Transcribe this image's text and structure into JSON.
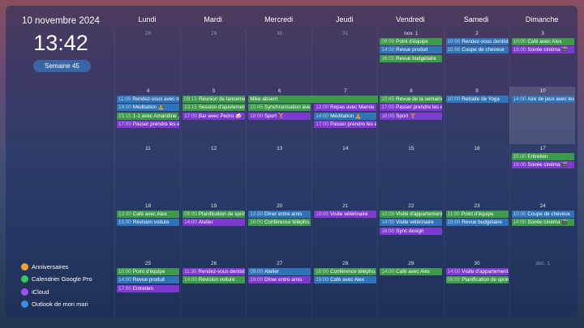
{
  "sidebar": {
    "date": "10 novembre 2024",
    "time": "13:42",
    "week": "Semaine 45"
  },
  "calendars": [
    {
      "name": "Anniversaires",
      "color": "#f0a030"
    },
    {
      "name": "Calendrier Google Pro",
      "color": "#34c759"
    },
    {
      "name": "iCloud",
      "color": "#a050f0"
    },
    {
      "name": "Outlook de mon mari",
      "color": "#3a8ee0"
    }
  ],
  "weekdays": [
    "Lundi",
    "Mardi",
    "Mercredi",
    "Jeudi",
    "Vendredi",
    "Samedi",
    "Dimanche"
  ],
  "weeks": [
    {
      "days": [
        {
          "label": "28",
          "muted": true,
          "events": []
        },
        {
          "label": "29",
          "muted": true,
          "events": []
        },
        {
          "label": "30",
          "muted": true,
          "events": []
        },
        {
          "label": "31",
          "muted": true,
          "events": []
        },
        {
          "label": "nov. 1",
          "events": [
            {
              "time": "09:00",
              "title": "Point d'équipe",
              "color": "#3d9a4a"
            },
            {
              "time": "14:00",
              "title": "Revue produit",
              "color": "#2f74b8"
            },
            {
              "time": "16:00",
              "title": "Revue budgétaire",
              "color": "#3d9a4a"
            }
          ]
        },
        {
          "label": "2",
          "events": [
            {
              "time": "10:00",
              "title": "Rendez-vous dentiste",
              "color": "#2f74b8"
            },
            {
              "time": "15:00",
              "title": "Coupe de cheveux",
              "color": "#2f74b8"
            }
          ]
        },
        {
          "label": "3",
          "events": [
            {
              "time": "10:00",
              "title": "Café avec Alex",
              "color": "#3d9a4a"
            },
            {
              "time": "19:00",
              "title": "Soirée cinéma 🎬",
              "color": "#7e3ad0"
            }
          ]
        }
      ]
    },
    {
      "days": [
        {
          "label": "4",
          "events": [
            {
              "time": "11:00",
              "title": "Rendez-vous avec n...",
              "color": "#2f74b8"
            },
            {
              "time": "14:00",
              "title": "Méditation 🧘",
              "color": "#2f74b8"
            },
            {
              "time": "15:15",
              "title": "1-1 avec Amandine 👩‍💻",
              "color": "#3d9a4a"
            },
            {
              "time": "17:00",
              "title": "Passer prendre les e...",
              "color": "#7e3ad0"
            }
          ]
        },
        {
          "label": "5",
          "events": [
            {
              "time": "09:15",
              "title": "Réunion de lancement",
              "color": "#3d9a4a"
            },
            {
              "time": "13:15",
              "title": "Session d'ajustement",
              "color": "#3d9a4a"
            },
            {
              "time": "17:00",
              "title": "Bar avec Pedro 🍻",
              "color": "#7e3ad0"
            }
          ]
        },
        {
          "label": "6",
          "events": [
            {
              "title": "Mike absent",
              "color": "#3d9a4a",
              "all_day": true,
              "span": 2
            },
            {
              "time": "10:45",
              "title": "Synchronisation ave...",
              "color": "#3d9a4a"
            },
            {
              "time": "18:00",
              "title": "Sport 🏋",
              "color": "#7e3ad0"
            }
          ]
        },
        {
          "label": "7",
          "events": [
            {
              "time": "12:00",
              "title": "Repas avec Marnie",
              "color": "#7e3ad0"
            },
            {
              "time": "14:00",
              "title": "Méditation 🧘",
              "color": "#2f74b8"
            },
            {
              "time": "17:00",
              "title": "Passer prendre les e...",
              "color": "#7e3ad0"
            }
          ]
        },
        {
          "label": "8",
          "events": [
            {
              "time": "10:45",
              "title": "Revue de la semaine",
              "color": "#3d9a4a"
            },
            {
              "time": "17:00",
              "title": "Passer prendre les e...",
              "color": "#7e3ad0"
            },
            {
              "time": "18:00",
              "title": "Sport 🏋",
              "color": "#7e3ad0"
            }
          ]
        },
        {
          "label": "9",
          "events": [
            {
              "time": "10:00",
              "title": "Retraite de Yoga",
              "color": "#2f74b8"
            }
          ]
        },
        {
          "label": "10",
          "highlighted": true,
          "events": [
            {
              "time": "14:00",
              "title": "Aire de jeux avec les...",
              "color": "#2f74b8"
            }
          ]
        }
      ]
    },
    {
      "days": [
        {
          "label": "11",
          "events": []
        },
        {
          "label": "12",
          "events": []
        },
        {
          "label": "13",
          "events": []
        },
        {
          "label": "14",
          "events": []
        },
        {
          "label": "15",
          "events": []
        },
        {
          "label": "16",
          "events": []
        },
        {
          "label": "17",
          "events": [
            {
              "time": "15:00",
              "title": "Entretien",
              "color": "#3d9a4a"
            },
            {
              "time": "19:00",
              "title": "Soirée cinéma 🎬",
              "color": "#7e3ad0"
            }
          ]
        }
      ]
    },
    {
      "days": [
        {
          "label": "18",
          "events": [
            {
              "time": "13:00",
              "title": "Café avec Alex",
              "color": "#3d9a4a"
            },
            {
              "time": "15:00",
              "title": "Révision voiture",
              "color": "#2f74b8"
            }
          ]
        },
        {
          "label": "19",
          "events": [
            {
              "time": "09:00",
              "title": "Planification de sprint",
              "color": "#3d9a4a"
            },
            {
              "time": "14:00",
              "title": "Atelier",
              "color": "#7e3ad0"
            }
          ]
        },
        {
          "label": "20",
          "events": [
            {
              "time": "12:00",
              "title": "Dîner entre amis",
              "color": "#2f74b8"
            },
            {
              "time": "16:00",
              "title": "Conférence télépho...",
              "color": "#3d9a4a"
            }
          ]
        },
        {
          "label": "21",
          "events": [
            {
              "time": "19:00",
              "title": "Visite vétérinaire",
              "color": "#7e3ad0"
            }
          ]
        },
        {
          "label": "22",
          "events": [
            {
              "time": "10:00",
              "title": "Visite d'appartement",
              "color": "#3d9a4a"
            },
            {
              "time": "14:00",
              "title": "Visite vétérinaire",
              "color": "#2f74b8"
            },
            {
              "time": "16:00",
              "title": "Sync design",
              "color": "#7e3ad0"
            }
          ]
        },
        {
          "label": "23",
          "events": [
            {
              "time": "11:00",
              "title": "Point d'équipe",
              "color": "#3d9a4a"
            },
            {
              "time": "15:00",
              "title": "Revue budgétaire",
              "color": "#2f74b8"
            }
          ]
        },
        {
          "label": "24",
          "events": [
            {
              "time": "10:00",
              "title": "Coupe de cheveux",
              "color": "#2f74b8"
            },
            {
              "time": "14:00",
              "title": "Soirée cinéma 🎬",
              "color": "#3d9a4a"
            }
          ]
        }
      ]
    },
    {
      "days": [
        {
          "label": "25",
          "events": [
            {
              "time": "10:00",
              "title": "Point d'équipe",
              "color": "#3d9a4a"
            },
            {
              "time": "14:00",
              "title": "Revue produit",
              "color": "#2f74b8"
            },
            {
              "time": "17:00",
              "title": "Entretien",
              "color": "#7e3ad0"
            }
          ]
        },
        {
          "label": "26",
          "events": [
            {
              "time": "11:30",
              "title": "Rendez-vous dentiste",
              "color": "#7e3ad0"
            },
            {
              "time": "14:00",
              "title": "Révision voiture",
              "color": "#3d9a4a"
            }
          ]
        },
        {
          "label": "27",
          "events": [
            {
              "time": "09:00",
              "title": "Atelier",
              "color": "#2f74b8"
            },
            {
              "time": "19:00",
              "title": "Dîner entre amis",
              "color": "#7e3ad0"
            }
          ]
        },
        {
          "label": "28",
          "events": [
            {
              "time": "10:00",
              "title": "Conférence télépho...",
              "color": "#3d9a4a"
            },
            {
              "time": "15:00",
              "title": "Café avec Alex",
              "color": "#2f74b8"
            }
          ]
        },
        {
          "label": "29",
          "events": [
            {
              "time": "14:00",
              "title": "Café avec Alex",
              "color": "#3d9a4a"
            }
          ]
        },
        {
          "label": "30",
          "events": [
            {
              "time": "14:00",
              "title": "Visite d'appartement",
              "color": "#7e3ad0"
            },
            {
              "time": "09:00",
              "title": "Planification de sprint",
              "color": "#3d9a4a"
            }
          ]
        },
        {
          "label": "déc. 1",
          "muted": true,
          "events": []
        }
      ]
    }
  ]
}
